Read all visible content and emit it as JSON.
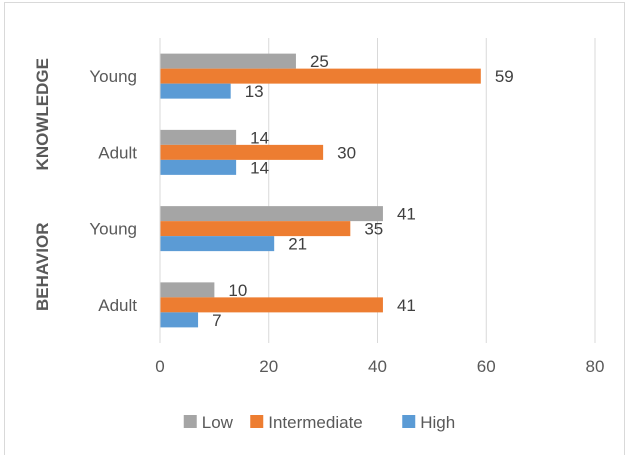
{
  "chart_data": {
    "type": "bar",
    "orientation": "horizontal",
    "title": "",
    "xlabel": "",
    "ylabel": "",
    "xlim": [
      0,
      80
    ],
    "xticks": [
      0,
      20,
      40,
      60,
      80
    ],
    "grid": "vertical",
    "legend_position": "bottom",
    "groups": [
      {
        "label": "KNOWLEDGE",
        "categories": [
          "Young",
          "Adult"
        ]
      },
      {
        "label": "BEHAVIOR",
        "categories": [
          "Young",
          "Adult"
        ]
      }
    ],
    "categories": [
      "KNOWLEDGE Young",
      "KNOWLEDGE Adult",
      "BEHAVIOR Young",
      "BEHAVIOR Adult"
    ],
    "series": [
      {
        "name": "Low",
        "color": "#a5a5a5",
        "values": [
          25,
          14,
          41,
          10
        ]
      },
      {
        "name": "Intermediate",
        "color": "#ed7d31",
        "values": [
          59,
          30,
          35,
          41
        ]
      },
      {
        "name": "High",
        "color": "#5b9bd5",
        "values": [
          13,
          14,
          21,
          7
        ]
      }
    ]
  }
}
